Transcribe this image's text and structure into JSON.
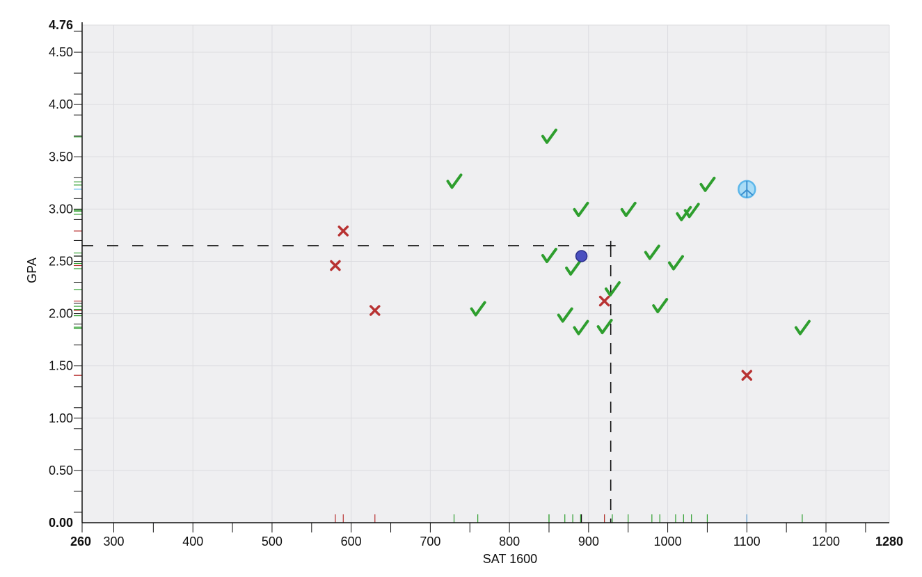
{
  "chart_data": {
    "type": "scatter",
    "xlabel": "SAT 1600",
    "ylabel": "GPA",
    "xlim": [
      260,
      1280
    ],
    "ylim": [
      0,
      4.76
    ],
    "x_ticks": [
      300,
      400,
      500,
      600,
      700,
      800,
      900,
      1000,
      1100,
      1200
    ],
    "x_end_labels": [
      "260",
      "1280"
    ],
    "y_ticks": [
      0.5,
      1.0,
      1.5,
      2.0,
      2.5,
      3.0,
      3.5,
      4.0,
      4.5
    ],
    "y_tick_labels": [
      "0.50",
      "1.00",
      "1.50",
      "2.00",
      "2.50",
      "3.00",
      "3.50",
      "4.00",
      "4.50"
    ],
    "y_end_labels": [
      "0.00",
      "4.76"
    ],
    "grid": true,
    "crosshair": {
      "x": 928,
      "y": 2.65
    },
    "colors": {
      "accepted": "#2e9e2e",
      "rejected": "#b83232",
      "you": "#4a4fbf",
      "peace": "#5bb6ea",
      "background": "#efeff1",
      "grid": "#dcdce0"
    },
    "series": [
      {
        "marker": "check",
        "points": [
          [
            850,
            3.69
          ],
          [
            730,
            3.26
          ],
          [
            760,
            2.04
          ],
          [
            850,
            2.55
          ],
          [
            880,
            2.43
          ],
          [
            890,
            2.99
          ],
          [
            870,
            1.98
          ],
          [
            890,
            1.86
          ],
          [
            920,
            1.87
          ],
          [
            930,
            2.23
          ],
          [
            950,
            2.99
          ],
          [
            980,
            2.58
          ],
          [
            990,
            2.07
          ],
          [
            1010,
            2.48
          ],
          [
            1020,
            2.95
          ],
          [
            1030,
            2.98
          ],
          [
            1050,
            3.23
          ],
          [
            1170,
            1.86
          ]
        ]
      },
      {
        "marker": "cross",
        "points": [
          [
            590,
            2.79
          ],
          [
            580,
            2.46
          ],
          [
            630,
            2.03
          ],
          [
            920,
            2.12
          ],
          [
            1100,
            1.41
          ]
        ]
      },
      {
        "marker": "dot",
        "points": [
          [
            891,
            2.55
          ]
        ]
      },
      {
        "marker": "peace",
        "points": [
          [
            1100,
            3.19
          ]
        ]
      }
    ],
    "rug_colors": [
      "#2e9e2e",
      "#b83232",
      "#111111",
      "#5bb6ea"
    ]
  }
}
